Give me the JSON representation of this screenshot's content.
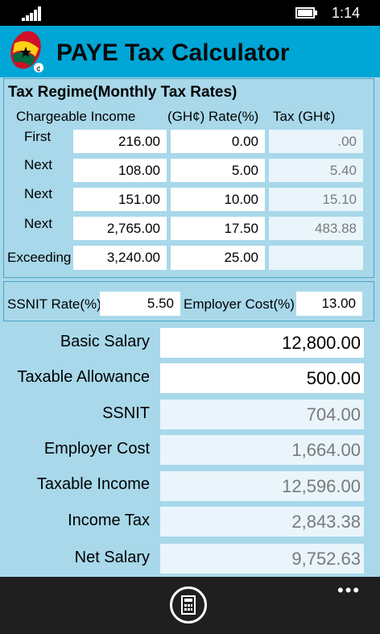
{
  "status": {
    "time": "1:14"
  },
  "header": {
    "title": "PAYE Tax Calculator"
  },
  "regime": {
    "title": "Tax Regime(Monthly Tax Rates)",
    "col_income": "Chargeable Income",
    "col_rate": "(GH¢) Rate(%)",
    "col_tax": "Tax (GH¢)",
    "rows": [
      {
        "label": "First",
        "income": "216.00",
        "rate": "0.00",
        "tax": ".00"
      },
      {
        "label": "Next",
        "income": "108.00",
        "rate": "5.00",
        "tax": "5.40"
      },
      {
        "label": "Next",
        "income": "151.00",
        "rate": "10.00",
        "tax": "15.10"
      },
      {
        "label": "Next",
        "income": "2,765.00",
        "rate": "17.50",
        "tax": "483.88"
      },
      {
        "label": "Exceeding",
        "income": "3,240.00",
        "rate": "25.00",
        "tax": ""
      }
    ]
  },
  "ssnit": {
    "rate_label": "SSNIT Rate(%)",
    "rate_value": "5.50",
    "employer_label": "Employer Cost(%)",
    "employer_value": "13.00"
  },
  "summary": {
    "basic_salary_label": "Basic Salary",
    "basic_salary": "12,800.00",
    "taxable_allowance_label": "Taxable Allowance",
    "taxable_allowance": "500.00",
    "ssnit_label": "SSNIT",
    "ssnit": "704.00",
    "employer_cost_label": "Employer Cost",
    "employer_cost": "1,664.00",
    "taxable_income_label": "Taxable Income",
    "taxable_income": "12,596.00",
    "income_tax_label": "Income Tax",
    "income_tax": "2,843.38",
    "net_salary_label": "Net Salary",
    "net_salary": "9,752.63"
  },
  "appbar": {
    "more": "•••",
    "calculate_icon": "calculator-icon"
  },
  "colors": {
    "background": "#a8d8ea",
    "header": "#00a6d6",
    "panel_border": "#4aa3c7"
  }
}
